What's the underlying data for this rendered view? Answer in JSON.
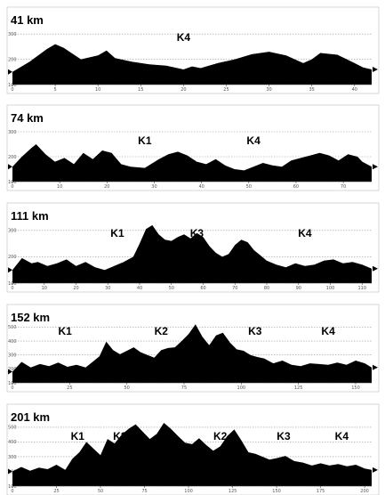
{
  "chart_data": [
    {
      "type": "area",
      "title": "41 km",
      "annotations": [
        "K4"
      ],
      "xticks": [
        "0",
        "5",
        "10",
        "15",
        "20",
        "25",
        "30",
        "35",
        "40"
      ],
      "yticks": [
        "100",
        "200",
        "300"
      ],
      "xlim": [
        0,
        42
      ],
      "ylim": [
        100,
        350
      ],
      "annotation_x": [
        20
      ],
      "x": [
        0,
        2,
        4,
        5,
        6,
        8,
        10,
        11,
        12,
        14,
        16,
        18,
        20,
        21,
        22,
        24,
        26,
        28,
        30,
        32,
        34,
        35,
        36,
        38,
        40,
        41,
        42
      ],
      "y": [
        150,
        190,
        240,
        260,
        245,
        200,
        215,
        235,
        205,
        190,
        180,
        175,
        160,
        172,
        165,
        185,
        200,
        220,
        230,
        215,
        185,
        200,
        225,
        218,
        185,
        168,
        160
      ]
    },
    {
      "type": "area",
      "title": "74 km",
      "annotations": [
        "K1",
        "K4"
      ],
      "xticks": [
        "0",
        "10",
        "20",
        "30",
        "40",
        "50",
        "60",
        "70"
      ],
      "yticks": [
        "100",
        "200",
        "300"
      ],
      "xlim": [
        0,
        76
      ],
      "ylim": [
        100,
        350
      ],
      "annotation_x": [
        28,
        51
      ],
      "x": [
        0,
        2,
        4,
        5,
        7,
        9,
        11,
        13,
        15,
        17,
        19,
        21,
        23,
        25,
        28,
        31,
        33,
        35,
        37,
        39,
        41,
        43,
        45,
        47,
        49,
        51,
        53,
        55,
        57,
        59,
        61,
        63,
        65,
        67,
        69,
        71,
        73,
        74,
        76
      ],
      "y": [
        160,
        200,
        235,
        250,
        210,
        180,
        195,
        170,
        215,
        190,
        225,
        215,
        170,
        160,
        155,
        190,
        210,
        220,
        205,
        180,
        170,
        190,
        165,
        150,
        145,
        160,
        175,
        165,
        160,
        185,
        195,
        205,
        215,
        205,
        185,
        210,
        200,
        180,
        160
      ]
    },
    {
      "type": "area",
      "title": "111 km",
      "annotations": [
        "K1",
        "K3",
        "K4"
      ],
      "xticks": [
        "0",
        "10",
        "20",
        "30",
        "40",
        "50",
        "60",
        "70",
        "80",
        "90",
        "100",
        "110"
      ],
      "yticks": [
        "100",
        "200",
        "300"
      ],
      "xlim": [
        0,
        113
      ],
      "ylim": [
        100,
        350
      ],
      "annotation_x": [
        33,
        58,
        92
      ],
      "x": [
        0,
        3,
        6,
        8,
        11,
        14,
        17,
        20,
        23,
        26,
        29,
        32,
        35,
        38,
        40,
        42,
        44,
        46,
        48,
        50,
        52,
        54,
        56,
        58,
        60,
        62,
        64,
        66,
        68,
        70,
        72,
        74,
        76,
        78,
        80,
        83,
        86,
        89,
        92,
        95,
        98,
        101,
        104,
        107,
        110,
        113
      ],
      "y": [
        150,
        195,
        175,
        180,
        165,
        175,
        190,
        165,
        180,
        160,
        150,
        165,
        180,
        200,
        250,
        305,
        320,
        285,
        265,
        260,
        275,
        285,
        270,
        290,
        275,
        240,
        215,
        200,
        210,
        245,
        265,
        255,
        225,
        205,
        185,
        170,
        160,
        175,
        165,
        170,
        185,
        190,
        175,
        180,
        170,
        155
      ]
    },
    {
      "type": "area",
      "title": "152 km",
      "annotations": [
        "K1",
        "K2",
        "K3",
        "K4"
      ],
      "xticks": [
        "0",
        "25",
        "50",
        "75",
        "100",
        "125",
        "150"
      ],
      "yticks": [
        "100",
        "200",
        "300",
        "400",
        "500"
      ],
      "xlim": [
        0,
        157
      ],
      "ylim": [
        100,
        560
      ],
      "annotation_x": [
        23,
        65,
        106,
        138
      ],
      "x": [
        0,
        4,
        8,
        12,
        16,
        20,
        24,
        28,
        32,
        35,
        38,
        41,
        44,
        47,
        50,
        53,
        56,
        59,
        62,
        65,
        68,
        71,
        74,
        77,
        80,
        83,
        86,
        89,
        92,
        95,
        98,
        101,
        104,
        107,
        110,
        114,
        118,
        122,
        126,
        130,
        134,
        138,
        142,
        146,
        150,
        154,
        157
      ],
      "y": [
        180,
        250,
        210,
        235,
        220,
        245,
        215,
        230,
        210,
        250,
        290,
        395,
        335,
        305,
        330,
        355,
        320,
        300,
        280,
        335,
        350,
        355,
        400,
        450,
        520,
        430,
        370,
        440,
        460,
        390,
        340,
        330,
        300,
        285,
        275,
        240,
        260,
        230,
        220,
        240,
        235,
        230,
        245,
        230,
        260,
        240,
        210
      ]
    },
    {
      "type": "area",
      "title": "201 km",
      "annotations": [
        "K1",
        "K2",
        "K2",
        "K3",
        "K4"
      ],
      "xticks": [
        "0",
        "25",
        "50",
        "75",
        "100",
        "125",
        "150",
        "175",
        "200"
      ],
      "yticks": [
        "100",
        "200",
        "300",
        "400",
        "500"
      ],
      "xlim": [
        0,
        204
      ],
      "ylim": [
        100,
        560
      ],
      "annotation_x": [
        37,
        61,
        118,
        154,
        187
      ],
      "x": [
        0,
        5,
        10,
        15,
        20,
        25,
        30,
        34,
        38,
        42,
        46,
        50,
        54,
        58,
        62,
        66,
        70,
        74,
        78,
        82,
        86,
        90,
        94,
        98,
        102,
        106,
        110,
        114,
        118,
        122,
        126,
        130,
        134,
        138,
        142,
        146,
        150,
        155,
        160,
        165,
        170,
        175,
        180,
        185,
        190,
        195,
        200,
        204
      ],
      "y": [
        200,
        230,
        205,
        225,
        215,
        245,
        210,
        285,
        330,
        400,
        355,
        310,
        420,
        390,
        450,
        490,
        520,
        470,
        420,
        455,
        530,
        490,
        440,
        395,
        385,
        425,
        380,
        340,
        370,
        440,
        485,
        410,
        330,
        320,
        300,
        280,
        290,
        305,
        270,
        260,
        240,
        255,
        240,
        250,
        235,
        245,
        220,
        210
      ]
    }
  ]
}
